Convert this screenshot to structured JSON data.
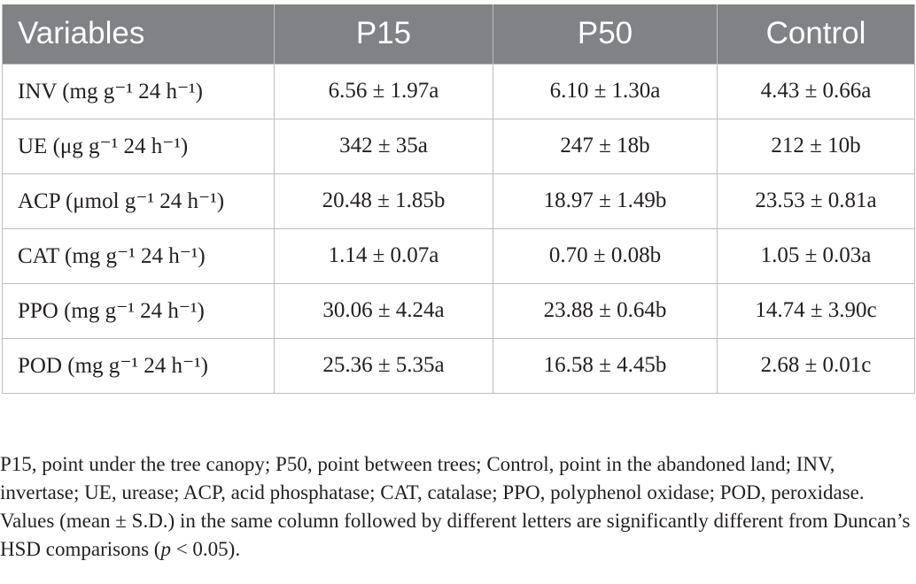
{
  "table": {
    "headers": [
      "Variables",
      "P15",
      "P50",
      "Control"
    ],
    "rows": [
      {
        "variable": "INV (mg g⁻¹ 24 h⁻¹)",
        "p15": "6.56 ± 1.97a",
        "p50": "6.10 ± 1.30a",
        "control": "4.43 ± 0.66a"
      },
      {
        "variable": "UE (μg g⁻¹ 24 h⁻¹)",
        "p15": "342 ± 35a",
        "p50": "247 ± 18b",
        "control": "212 ± 10b"
      },
      {
        "variable": "ACP (μmol g⁻¹ 24 h⁻¹)",
        "p15": "20.48 ± 1.85b",
        "p50": "18.97 ± 1.49b",
        "control": "23.53 ± 0.81a"
      },
      {
        "variable": "CAT (mg g⁻¹ 24 h⁻¹)",
        "p15": "1.14 ± 0.07a",
        "p50": "0.70 ± 0.08b",
        "control": "1.05 ± 0.03a"
      },
      {
        "variable": "PPO (mg g⁻¹ 24 h⁻¹)",
        "p15": "30.06 ± 4.24a",
        "p50": "23.88 ± 0.64b",
        "control": "14.74 ± 3.90c"
      },
      {
        "variable": "POD (mg g⁻¹ 24 h⁻¹)",
        "p15": "25.36 ± 5.35a",
        "p50": "16.58 ± 4.45b",
        "control": "2.68 ± 0.01c"
      }
    ]
  },
  "footnote": {
    "text_before_p": "P15, point under the tree canopy; P50, point between trees; Control, point in the abandoned land; INV, invertase; UE, urease; ACP, acid phosphatase; CAT, catalase; PPO, polyphenol oxidase; POD, peroxidase. Values (mean ± S.D.) in the same column followed by different letters are significantly different from Duncan’s HSD comparisons (",
    "p_symbol": "p",
    "text_after_p": " < 0.05)."
  },
  "colors": {
    "header_background": "#808285",
    "header_text": "#ffffff",
    "grid_line": "#bcbec0",
    "body_text": "#231f20"
  }
}
